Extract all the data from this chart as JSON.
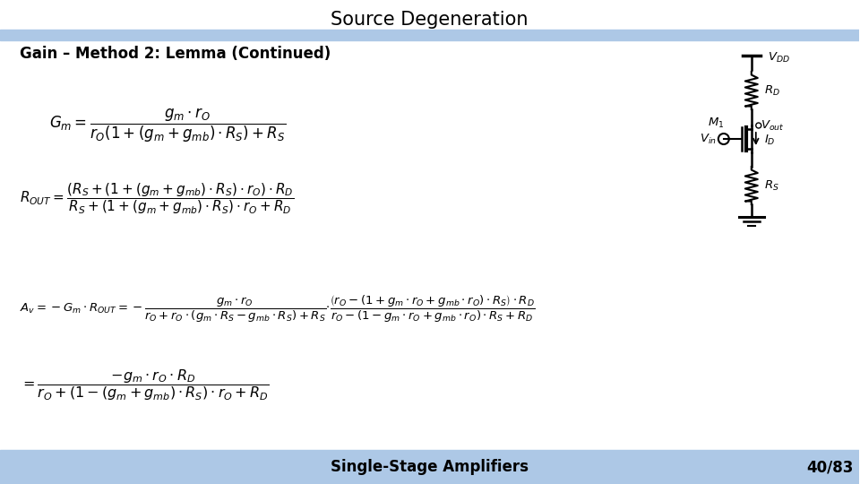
{
  "title": "Source Degeneration",
  "subtitle": "Gain – Method 2: Lemma (Continued)",
  "footer_left": "Single-Stage Amplifiers",
  "footer_right": "40/83",
  "header_bg": "#ffffff",
  "blue_bar_color": "#adc8e6",
  "footer_bar_color": "#adc8e6",
  "content_bg": "#ffffff",
  "title_fontsize": 15,
  "subtitle_fontsize": 12,
  "footer_fontsize": 12
}
